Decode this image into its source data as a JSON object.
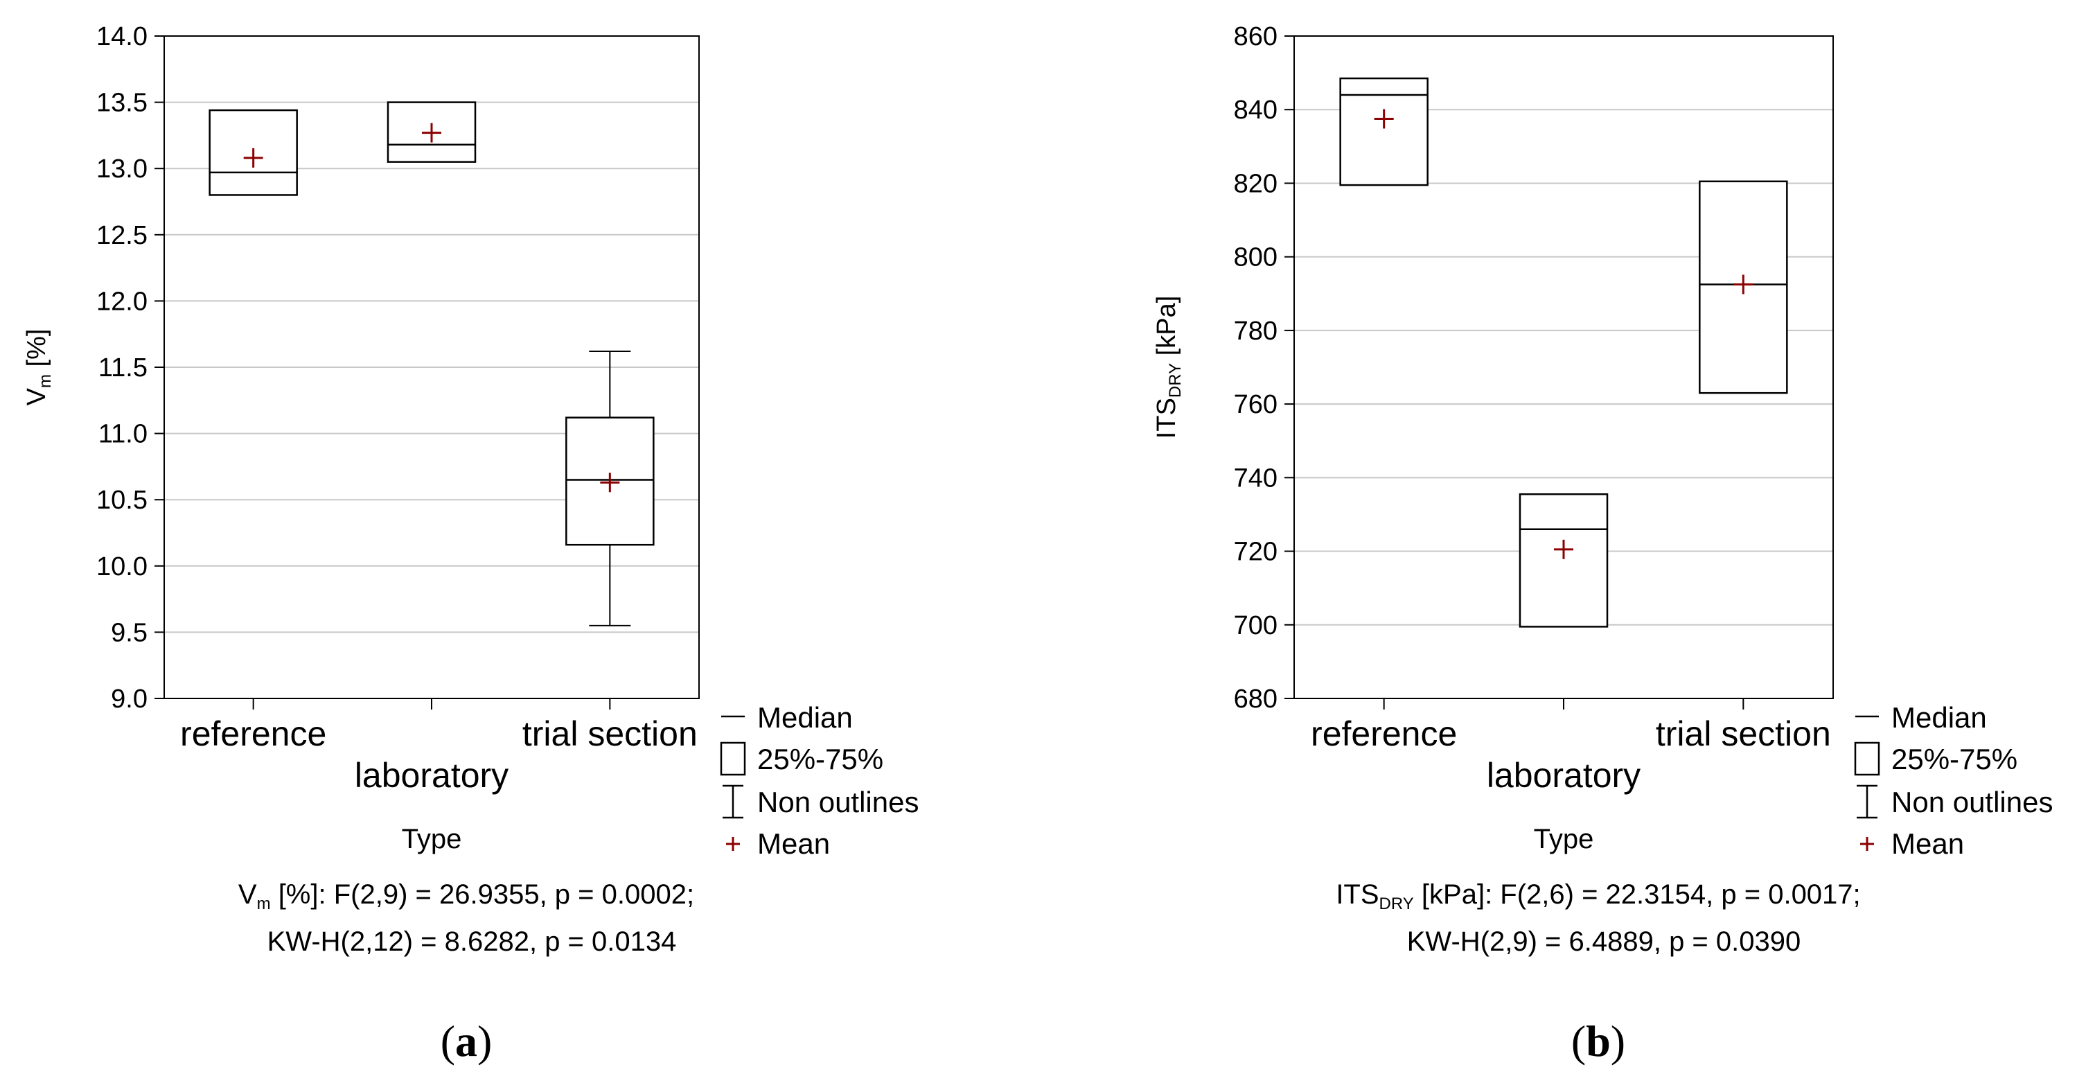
{
  "chart_data": [
    {
      "panel": "a",
      "type": "box",
      "xlabel": "Type",
      "ylabel_main": "V",
      "ylabel_sub": "m",
      "ylabel_unit": " [%]",
      "ylim": [
        9.0,
        14.0
      ],
      "yticks": [
        "9.0",
        "9.5",
        "10.0",
        "10.5",
        "11.0",
        "11.5",
        "12.0",
        "12.5",
        "13.0",
        "13.5",
        "14.0"
      ],
      "categories": [
        "reference",
        "laboratory",
        "trial section"
      ],
      "boxes": [
        {
          "q1": 12.8,
          "median": 12.97,
          "q3": 13.44,
          "mean": 13.08,
          "whisker_low": null,
          "whisker_high": null
        },
        {
          "q1": 13.05,
          "median": 13.18,
          "q3": 13.5,
          "mean": 13.27,
          "whisker_low": null,
          "whisker_high": null
        },
        {
          "q1": 10.16,
          "median": 10.65,
          "q3": 11.12,
          "mean": 10.63,
          "whisker_low": 9.55,
          "whisker_high": 11.62
        }
      ],
      "stats_line1_main": "V",
      "stats_line1_sub": "m",
      "stats_line1_rest": " [%]:   F(2,9) = 26.9355, p = 0.0002;",
      "stats_line2": "KW-H(2,12) = 8.6282, p = 0.0134"
    },
    {
      "panel": "b",
      "type": "box",
      "xlabel": "Type",
      "ylabel_main": "ITS",
      "ylabel_sub": "DRY",
      "ylabel_unit": " [kPa]",
      "ylim": [
        680,
        860
      ],
      "yticks": [
        "680",
        "700",
        "720",
        "740",
        "760",
        "780",
        "800",
        "820",
        "840",
        "860"
      ],
      "categories": [
        "reference",
        "laboratory",
        "trial section"
      ],
      "boxes": [
        {
          "q1": 819.5,
          "median": 844,
          "q3": 848.5,
          "mean": 837.5,
          "whisker_low": null,
          "whisker_high": null
        },
        {
          "q1": 699.5,
          "median": 726,
          "q3": 735.5,
          "mean": 720.5,
          "whisker_low": null,
          "whisker_high": null
        },
        {
          "q1": 763,
          "median": 792.5,
          "q3": 820.5,
          "mean": 792.5,
          "whisker_low": null,
          "whisker_high": null
        }
      ],
      "stats_line1_main": "ITS",
      "stats_line1_sub": "DRY",
      "stats_line1_rest": " [kPa]:   F(2,6) = 22.3154, p = 0.0017;",
      "stats_line2": "KW-H(2,9) = 6.4889, p = 0.0390"
    }
  ],
  "legend": {
    "median": "Median",
    "box": "25%-75%",
    "whisker": "Non outlines",
    "mean": "Mean"
  },
  "colors": {
    "mean_marker": "#8b0000",
    "grid": "#c8c8c8",
    "axis": "#000000"
  }
}
